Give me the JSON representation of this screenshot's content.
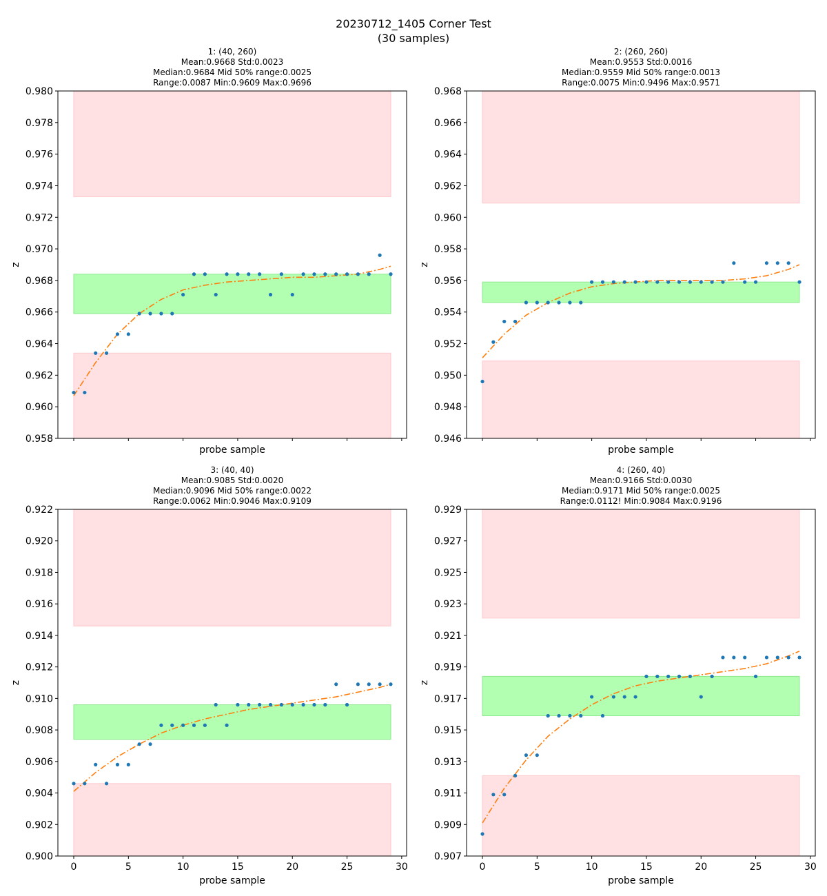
{
  "figure": {
    "title_line1": "20230712_1405 Corner Test",
    "title_line2": "(30 samples)"
  },
  "colors": {
    "points": "#1f77b4",
    "fit": "#ff7f0e",
    "band_ok": "#b2ffb2",
    "band_ok_edge": "#8ee88e",
    "band_bad": "#ffe0e3",
    "band_bad_edge": "#ffc9ce"
  },
  "chart_data": [
    {
      "type": "scatter",
      "title_lines": [
        "1: (40, 260)",
        "Mean:0.9668  Std:0.0023",
        "Median:0.9684  Mid 50% range:0.0025",
        "Range:0.0087  Min:0.9609  Max:0.9696"
      ],
      "xlabel": "probe sample",
      "ylabel": "z",
      "xlim": [
        -1.45,
        30.45
      ],
      "ylim": [
        0.958,
        0.98
      ],
      "xticks": [
        0,
        5,
        10,
        15,
        20,
        25,
        30
      ],
      "show_xtick_labels": false,
      "yticks": [
        0.958,
        0.96,
        0.962,
        0.964,
        0.966,
        0.968,
        0.97,
        0.972,
        0.974,
        0.976,
        0.978,
        0.98
      ],
      "ytick_decimals": 3,
      "bands": [
        {
          "kind": "bad",
          "y0": 0.9733,
          "y1": 0.98
        },
        {
          "kind": "ok",
          "y0": 0.9659,
          "y1": 0.9684
        },
        {
          "kind": "bad",
          "y0": 0.958,
          "y1": 0.9634
        }
      ],
      "x": [
        0,
        1,
        2,
        3,
        4,
        5,
        6,
        7,
        8,
        9,
        10,
        11,
        12,
        13,
        14,
        15,
        16,
        17,
        18,
        19,
        20,
        21,
        22,
        23,
        24,
        25,
        26,
        27,
        28,
        29
      ],
      "y": [
        0.9609,
        0.9609,
        0.9634,
        0.9634,
        0.9646,
        0.9646,
        0.9659,
        0.9659,
        0.9659,
        0.9659,
        0.9671,
        0.9684,
        0.9684,
        0.9671,
        0.9684,
        0.9684,
        0.9684,
        0.9684,
        0.9671,
        0.9684,
        0.9671,
        0.9684,
        0.9684,
        0.9684,
        0.9684,
        0.9684,
        0.9684,
        0.9684,
        0.9696,
        0.9684
      ],
      "fit_x": [
        0,
        2,
        4,
        6,
        8,
        10,
        12,
        14,
        16,
        18,
        20,
        22,
        24,
        26,
        28,
        29
      ],
      "fit_y": [
        0.9607,
        0.9628,
        0.9646,
        0.9659,
        0.9668,
        0.9674,
        0.9677,
        0.9679,
        0.968,
        0.9681,
        0.9682,
        0.9682,
        0.9683,
        0.9684,
        0.9687,
        0.9689
      ]
    },
    {
      "type": "scatter",
      "title_lines": [
        "2: (260, 260)",
        "Mean:0.9553  Std:0.0016",
        "Median:0.9559  Mid 50% range:0.0013",
        "Range:0.0075  Min:0.9496  Max:0.9571"
      ],
      "xlabel": "probe sample",
      "ylabel": "z",
      "xlim": [
        -1.45,
        30.45
      ],
      "ylim": [
        0.946,
        0.968
      ],
      "xticks": [
        0,
        5,
        10,
        15,
        20,
        25,
        30
      ],
      "show_xtick_labels": false,
      "yticks": [
        0.946,
        0.948,
        0.95,
        0.952,
        0.954,
        0.956,
        0.958,
        0.96,
        0.962,
        0.964,
        0.966,
        0.968
      ],
      "ytick_decimals": 3,
      "bands": [
        {
          "kind": "bad",
          "y0": 0.9609,
          "y1": 0.968
        },
        {
          "kind": "ok",
          "y0": 0.9546,
          "y1": 0.9559
        },
        {
          "kind": "bad",
          "y0": 0.946,
          "y1": 0.9509
        }
      ],
      "x": [
        0,
        1,
        2,
        3,
        4,
        5,
        6,
        7,
        8,
        9,
        10,
        11,
        12,
        13,
        14,
        15,
        16,
        17,
        18,
        19,
        20,
        21,
        22,
        23,
        24,
        25,
        26,
        27,
        28,
        29
      ],
      "y": [
        0.9496,
        0.9521,
        0.9534,
        0.9534,
        0.9546,
        0.9546,
        0.9546,
        0.9546,
        0.9546,
        0.9546,
        0.9559,
        0.9559,
        0.9559,
        0.9559,
        0.9559,
        0.9559,
        0.9559,
        0.9559,
        0.9559,
        0.9559,
        0.9559,
        0.9559,
        0.9559,
        0.9571,
        0.9559,
        0.9559,
        0.9571,
        0.9571,
        0.9571,
        0.9559
      ],
      "fit_x": [
        0,
        2,
        4,
        6,
        8,
        10,
        12,
        14,
        16,
        18,
        20,
        22,
        24,
        26,
        28,
        29
      ],
      "fit_y": [
        0.9511,
        0.9526,
        0.9538,
        0.9546,
        0.9552,
        0.9556,
        0.9558,
        0.9559,
        0.956,
        0.956,
        0.956,
        0.956,
        0.9561,
        0.9563,
        0.9567,
        0.957
      ]
    },
    {
      "type": "scatter",
      "title_lines": [
        "3: (40, 40)",
        "Mean:0.9085  Std:0.0020",
        "Median:0.9096  Mid 50% range:0.0022",
        "Range:0.0062  Min:0.9046  Max:0.9109"
      ],
      "xlabel": "probe sample",
      "ylabel": "z",
      "xlim": [
        -1.45,
        30.45
      ],
      "ylim": [
        0.9,
        0.922
      ],
      "xticks": [
        0,
        5,
        10,
        15,
        20,
        25,
        30
      ],
      "show_xtick_labels": true,
      "yticks": [
        0.9,
        0.902,
        0.904,
        0.906,
        0.908,
        0.91,
        0.912,
        0.914,
        0.916,
        0.918,
        0.92,
        0.922
      ],
      "ytick_decimals": 3,
      "bands": [
        {
          "kind": "bad",
          "y0": 0.9146,
          "y1": 0.922
        },
        {
          "kind": "ok",
          "y0": 0.9074,
          "y1": 0.9096
        },
        {
          "kind": "bad",
          "y0": 0.9,
          "y1": 0.9046
        }
      ],
      "x": [
        0,
        1,
        2,
        3,
        4,
        5,
        6,
        7,
        8,
        9,
        10,
        11,
        12,
        13,
        14,
        15,
        16,
        17,
        18,
        19,
        20,
        21,
        22,
        23,
        24,
        25,
        26,
        27,
        28,
        29
      ],
      "y": [
        0.9046,
        0.9046,
        0.9058,
        0.9046,
        0.9058,
        0.9058,
        0.9071,
        0.9071,
        0.9083,
        0.9083,
        0.9083,
        0.9083,
        0.9083,
        0.9096,
        0.9083,
        0.9096,
        0.9096,
        0.9096,
        0.9096,
        0.9096,
        0.9096,
        0.9096,
        0.9096,
        0.9096,
        0.9109,
        0.9096,
        0.9109,
        0.9109,
        0.9109,
        0.9109
      ],
      "fit_x": [
        0,
        2,
        4,
        6,
        8,
        10,
        12,
        14,
        16,
        18,
        20,
        22,
        24,
        26,
        28,
        29
      ],
      "fit_y": [
        0.9041,
        0.9053,
        0.9063,
        0.9071,
        0.9078,
        0.9083,
        0.9087,
        0.909,
        0.9093,
        0.9095,
        0.9097,
        0.9099,
        0.9101,
        0.9104,
        0.9107,
        0.9109
      ]
    },
    {
      "type": "scatter",
      "title_lines": [
        "4: (260, 40)",
        "Mean:0.9166  Std:0.0030",
        "Median:0.9171  Mid 50% range:0.0025",
        "Range:0.0112!  Min:0.9084  Max:0.9196"
      ],
      "xlabel": "probe sample",
      "ylabel": "z",
      "xlim": [
        -1.45,
        30.45
      ],
      "ylim": [
        0.907,
        0.929
      ],
      "xticks": [
        0,
        5,
        10,
        15,
        20,
        25,
        30
      ],
      "show_xtick_labels": true,
      "yticks": [
        0.907,
        0.909,
        0.911,
        0.913,
        0.915,
        0.917,
        0.919,
        0.921,
        0.923,
        0.925,
        0.927,
        0.929
      ],
      "ytick_decimals": 3,
      "bands": [
        {
          "kind": "bad",
          "y0": 0.9221,
          "y1": 0.929
        },
        {
          "kind": "ok",
          "y0": 0.9159,
          "y1": 0.9184
        },
        {
          "kind": "bad",
          "y0": 0.907,
          "y1": 0.9121
        }
      ],
      "x": [
        0,
        1,
        2,
        3,
        4,
        5,
        6,
        7,
        8,
        9,
        10,
        11,
        12,
        13,
        14,
        15,
        16,
        17,
        18,
        19,
        20,
        21,
        22,
        23,
        24,
        25,
        26,
        27,
        28,
        29
      ],
      "y": [
        0.9084,
        0.9109,
        0.9109,
        0.9121,
        0.9134,
        0.9134,
        0.9159,
        0.9159,
        0.9159,
        0.9159,
        0.9171,
        0.9159,
        0.9171,
        0.9171,
        0.9171,
        0.9184,
        0.9184,
        0.9184,
        0.9184,
        0.9184,
        0.9171,
        0.9184,
        0.9196,
        0.9196,
        0.9196,
        0.9184,
        0.9196,
        0.9196,
        0.9196,
        0.9196
      ],
      "fit_x": [
        0,
        2,
        4,
        6,
        8,
        10,
        12,
        14,
        16,
        18,
        20,
        22,
        24,
        26,
        28,
        29
      ],
      "fit_y": [
        0.9091,
        0.9113,
        0.9131,
        0.9146,
        0.9157,
        0.9166,
        0.9173,
        0.9178,
        0.9181,
        0.9183,
        0.9185,
        0.9187,
        0.9189,
        0.9192,
        0.9197,
        0.92
      ]
    }
  ]
}
